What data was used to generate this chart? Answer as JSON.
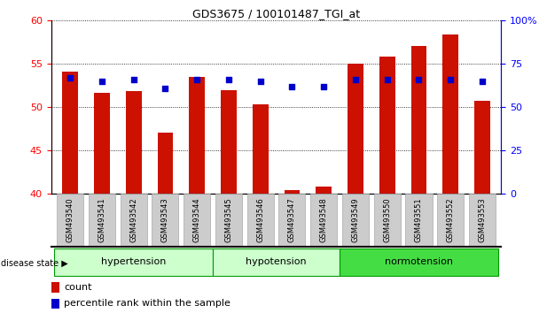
{
  "title": "GDS3675 / 100101487_TGI_at",
  "samples": [
    "GSM493540",
    "GSM493541",
    "GSM493542",
    "GSM493543",
    "GSM493544",
    "GSM493545",
    "GSM493546",
    "GSM493547",
    "GSM493548",
    "GSM493549",
    "GSM493550",
    "GSM493551",
    "GSM493552",
    "GSM493553"
  ],
  "count_values": [
    54.1,
    51.7,
    51.9,
    47.1,
    53.5,
    52.0,
    50.3,
    40.5,
    40.9,
    55.0,
    55.8,
    57.0,
    58.4,
    50.7
  ],
  "percentile_values": [
    67,
    65,
    66,
    61,
    66,
    66,
    65,
    62,
    62,
    66,
    66,
    66,
    66,
    65
  ],
  "ylim_left": [
    40,
    60
  ],
  "ylim_right": [
    0,
    100
  ],
  "yticks_left": [
    40,
    45,
    50,
    55,
    60
  ],
  "yticks_right": [
    0,
    25,
    50,
    75,
    100
  ],
  "bar_color": "#cc1100",
  "marker_color": "#0000cc",
  "bar_width": 0.5,
  "groups": [
    {
      "label": "hypertension",
      "start": 0,
      "end": 5
    },
    {
      "label": "hypotension",
      "start": 5,
      "end": 9
    },
    {
      "label": "normotension",
      "start": 9,
      "end": 14
    }
  ],
  "group_colors": [
    "#ccffcc",
    "#ccffcc",
    "#44dd44"
  ],
  "group_border_color": "#009900",
  "disease_state_label": "disease state",
  "legend_count_label": "count",
  "legend_percentile_label": "percentile rank within the sample",
  "tick_bg_color": "#cccccc",
  "background_color": "#ffffff"
}
